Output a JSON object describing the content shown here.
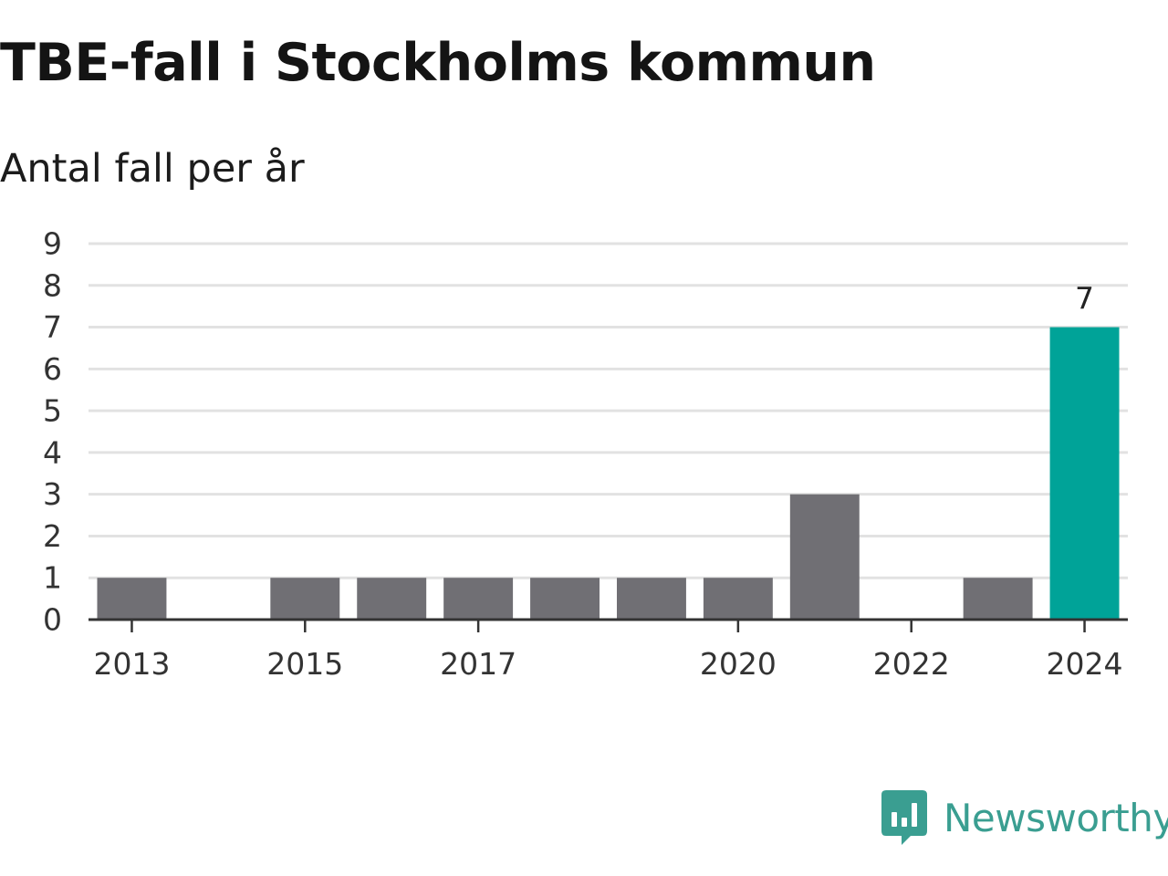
{
  "chart_data": {
    "type": "bar",
    "title": "TBE-fall i Stockholms kommun",
    "subtitle": "Antal fall per år",
    "xlabel": "",
    "ylabel": "",
    "categories": [
      "2013",
      "2014",
      "2015",
      "2016",
      "2017",
      "2018",
      "2019",
      "2020",
      "2021",
      "2022",
      "2023",
      "2024"
    ],
    "values": [
      1,
      0,
      1,
      1,
      1,
      1,
      1,
      1,
      3,
      0,
      1,
      7
    ],
    "ylim": [
      0,
      9
    ],
    "yticks": [
      "0",
      "1",
      "2",
      "3",
      "4",
      "5",
      "6",
      "7",
      "8",
      "9"
    ],
    "xtick_labels": [
      "2013",
      "2015",
      "2017",
      "2020",
      "2022",
      "2024"
    ],
    "data_labels": [
      {
        "category": "2024",
        "text": "7"
      }
    ],
    "highlight_category": "2024",
    "grid": true,
    "colors": {
      "bar": "#706f74",
      "highlight": "#00a398",
      "grid": "#e2e2e2",
      "axis": "#333333"
    }
  },
  "brand": {
    "name": "Newsworthy",
    "logo_icon": "newsworthy-chart-bubble-icon",
    "color": "#3a9e91"
  }
}
